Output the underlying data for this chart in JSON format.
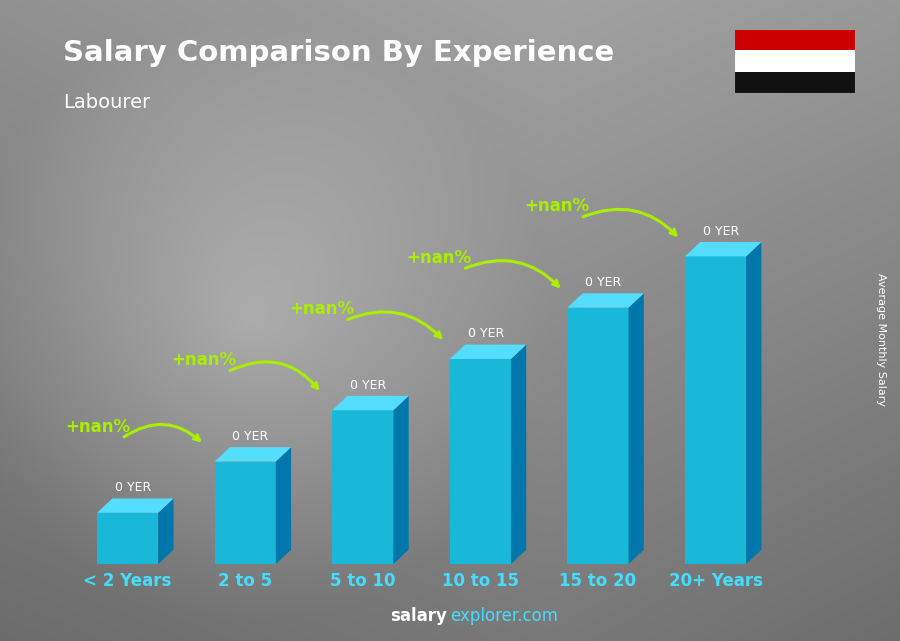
{
  "title": "Salary Comparison By Experience",
  "subtitle": "Labourer",
  "categories": [
    "< 2 Years",
    "2 to 5",
    "5 to 10",
    "10 to 15",
    "15 to 20",
    "20+ Years"
  ],
  "values": [
    1,
    2,
    3,
    4,
    5,
    6
  ],
  "bar_label": "0 YER",
  "change_label": "+nan%",
  "front_color": "#1ab8d8",
  "top_color": "#55ddff",
  "side_color": "#0077aa",
  "title_color": "#ffffff",
  "subtitle_color": "#ffffff",
  "annotation_green": "#aaee00",
  "yer_color": "#ffffff",
  "xlabel_color": "#44ddff",
  "footer_salary_color": "#ffffff",
  "footer_explorer_color": "#44ddff",
  "ylabel_text": "Average Monthly Salary",
  "flag_colors": [
    "#cc0000",
    "#ffffff",
    "#111111"
  ],
  "bg_left_color": "#a0a0a0",
  "bg_right_color": "#606060"
}
